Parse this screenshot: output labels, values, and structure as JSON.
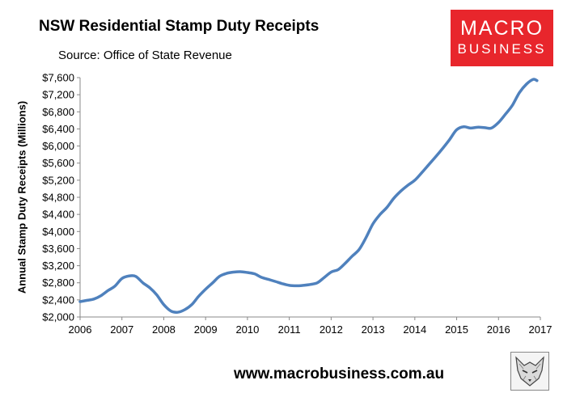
{
  "header": {
    "title": "NSW Residential Stamp Duty Receipts",
    "source": "Source: Office of State Revenue"
  },
  "logo": {
    "line1": "MACRO",
    "line2": "BUSINESS",
    "color": "#e8262c"
  },
  "footer": {
    "website": "www.macrobusiness.com.au"
  },
  "chart_data": {
    "type": "line",
    "title": "NSW Residential Stamp Duty Receipts",
    "subtitle": "Source: Office of State Revenue",
    "xlabel": "",
    "ylabel": "Annual Stamp Duty Receipts (Millions)",
    "xlim": [
      2006,
      2017
    ],
    "ylim": [
      2000,
      7600
    ],
    "xticks": [
      2006,
      2007,
      2008,
      2009,
      2010,
      2011,
      2012,
      2013,
      2014,
      2015,
      2016,
      2017
    ],
    "xtick_labels": [
      "2006",
      "2007",
      "2008",
      "2009",
      "2010",
      "2011",
      "2012",
      "2013",
      "2014",
      "2015",
      "2016",
      "2017"
    ],
    "yticks": [
      2000,
      2400,
      2800,
      3200,
      3600,
      4000,
      4400,
      4800,
      5200,
      5600,
      6000,
      6400,
      6800,
      7200,
      7600
    ],
    "ytick_labels": [
      "$2,000",
      "$2,400",
      "$2,800",
      "$3,200",
      "$3,600",
      "$4,000",
      "$4,400",
      "$4,800",
      "$5,200",
      "$5,600",
      "$6,000",
      "$6,400",
      "$6,800",
      "$7,200",
      "$7,600"
    ],
    "grid": false,
    "line_color": "#4f81bd",
    "series": [
      {
        "x": [
          2006.0,
          2006.17,
          2006.33,
          2006.5,
          2006.67,
          2006.83,
          2007.0,
          2007.17,
          2007.33,
          2007.5,
          2007.67,
          2007.83,
          2008.0,
          2008.17,
          2008.33,
          2008.5,
          2008.67,
          2008.83,
          2009.0,
          2009.17,
          2009.33,
          2009.5,
          2009.67,
          2009.83,
          2010.0,
          2010.17,
          2010.33,
          2010.5,
          2010.67,
          2010.83,
          2011.0,
          2011.17,
          2011.33,
          2011.5,
          2011.67,
          2011.83,
          2012.0,
          2012.17,
          2012.33,
          2012.5,
          2012.67,
          2012.83,
          2013.0,
          2013.17,
          2013.33,
          2013.5,
          2013.67,
          2013.83,
          2014.0,
          2014.17,
          2014.33,
          2014.5,
          2014.67,
          2014.83,
          2015.0,
          2015.17,
          2015.33,
          2015.5,
          2015.67,
          2015.83,
          2016.0,
          2016.17,
          2016.33,
          2016.5,
          2016.67,
          2016.83,
          2016.92
        ],
        "values": [
          2360,
          2390,
          2420,
          2500,
          2620,
          2720,
          2900,
          2960,
          2950,
          2800,
          2680,
          2520,
          2290,
          2140,
          2110,
          2170,
          2290,
          2480,
          2650,
          2800,
          2950,
          3020,
          3050,
          3060,
          3040,
          3010,
          2930,
          2880,
          2830,
          2780,
          2740,
          2730,
          2740,
          2760,
          2800,
          2920,
          3050,
          3110,
          3250,
          3420,
          3580,
          3850,
          4180,
          4400,
          4560,
          4780,
          4950,
          5080,
          5200,
          5380,
          5560,
          5750,
          5950,
          6150,
          6380,
          6450,
          6420,
          6440,
          6430,
          6420,
          6550,
          6750,
          6950,
          7250,
          7450,
          7560,
          7530
        ]
      }
    ]
  }
}
